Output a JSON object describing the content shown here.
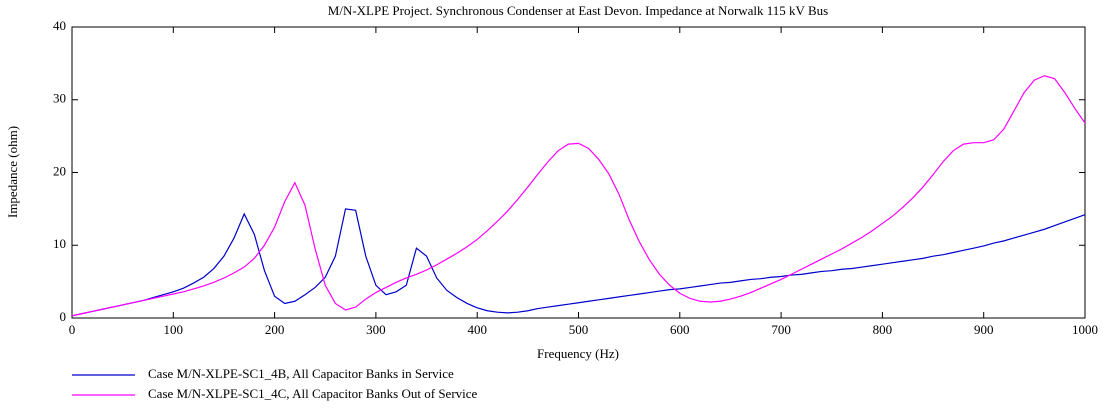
{
  "chart_data": {
    "type": "line",
    "title": "M/N-XLPE Project. Synchronous Condenser at East Devon. Impedance at Norwalk 115 kV Bus",
    "x_label": "Frequency (Hz)",
    "y_label": "Impedance (ohm)",
    "x": [
      0,
      10,
      20,
      30,
      40,
      50,
      60,
      70,
      80,
      90,
      100,
      110,
      120,
      130,
      140,
      150,
      160,
      170,
      180,
      190,
      200,
      210,
      220,
      230,
      240,
      250,
      260,
      270,
      280,
      290,
      300,
      310,
      320,
      330,
      340,
      350,
      360,
      370,
      380,
      390,
      400,
      410,
      420,
      430,
      440,
      450,
      460,
      470,
      480,
      490,
      500,
      510,
      520,
      530,
      540,
      550,
      560,
      570,
      580,
      590,
      600,
      610,
      620,
      630,
      640,
      650,
      660,
      670,
      680,
      690,
      700,
      710,
      720,
      730,
      740,
      750,
      760,
      770,
      780,
      790,
      800,
      810,
      820,
      830,
      840,
      850,
      860,
      870,
      880,
      890,
      900,
      910,
      920,
      930,
      940,
      950,
      960,
      970,
      980,
      990,
      1000
    ],
    "series": [
      {
        "name": "Case M/N-XLPE-SC1_4B, All Capacitor Banks in Service",
        "color": "#0000cc",
        "values": [
          0.3,
          0.6,
          0.9,
          1.2,
          1.5,
          1.8,
          2.1,
          2.4,
          2.8,
          3.2,
          3.6,
          4.1,
          4.8,
          5.6,
          6.8,
          8.5,
          11,
          14.3,
          11.5,
          6.5,
          3.0,
          2.0,
          2.3,
          3.2,
          4.2,
          5.6,
          8.5,
          15.0,
          14.8,
          8.5,
          4.5,
          3.2,
          3.6,
          4.5,
          9.6,
          8.5,
          5.5,
          3.8,
          2.8,
          2.0,
          1.4,
          1.0,
          0.8,
          0.7,
          0.8,
          1.0,
          1.3,
          1.5,
          1.7,
          1.9,
          2.1,
          2.3,
          2.5,
          2.7,
          2.9,
          3.1,
          3.3,
          3.5,
          3.7,
          3.9,
          4.0,
          4.2,
          4.4,
          4.6,
          4.8,
          4.9,
          5.1,
          5.3,
          5.4,
          5.6,
          5.7,
          5.9,
          6.0,
          6.2,
          6.4,
          6.5,
          6.7,
          6.8,
          7.0,
          7.2,
          7.4,
          7.6,
          7.8,
          8.0,
          8.2,
          8.5,
          8.7,
          9.0,
          9.3,
          9.6,
          9.9,
          10.3,
          10.6,
          11.0,
          11.4,
          11.8,
          12.2,
          12.7,
          13.2,
          13.7,
          14.2
        ]
      },
      {
        "name": "Case M/N-XLPE-SC1_4C, All Capacitor Banks Out of Service",
        "color": "#ff00ff",
        "values": [
          0.3,
          0.6,
          0.9,
          1.2,
          1.5,
          1.8,
          2.1,
          2.4,
          2.7,
          3.0,
          3.3,
          3.6,
          4.0,
          4.4,
          4.9,
          5.5,
          6.2,
          7.0,
          8.2,
          10.0,
          12.5,
          16.0,
          18.6,
          15.5,
          9.5,
          4.5,
          2.0,
          1.1,
          1.5,
          2.6,
          3.5,
          4.2,
          4.9,
          5.5,
          6.0,
          6.6,
          7.3,
          8.1,
          8.9,
          9.8,
          10.8,
          12.0,
          13.3,
          14.7,
          16.3,
          18.0,
          19.8,
          21.5,
          23.0,
          23.9,
          24.0,
          23.3,
          21.8,
          19.8,
          17.0,
          13.5,
          10.5,
          8.0,
          6.0,
          4.5,
          3.4,
          2.7,
          2.3,
          2.2,
          2.3,
          2.6,
          3.0,
          3.5,
          4.1,
          4.7,
          5.3,
          6.0,
          6.7,
          7.4,
          8.1,
          8.8,
          9.5,
          10.3,
          11.1,
          12.0,
          13.0,
          14.0,
          15.2,
          16.5,
          18.0,
          19.7,
          21.5,
          23.0,
          23.9,
          24.1,
          24.1,
          24.5,
          26.0,
          28.5,
          31.0,
          32.7,
          33.3,
          32.9,
          31.0,
          28.8,
          26.8
        ]
      }
    ],
    "xlim": [
      0,
      1000
    ],
    "xticks": [
      0,
      100,
      200,
      300,
      400,
      500,
      600,
      700,
      800,
      900,
      1000
    ],
    "ylim": [
      0,
      40
    ],
    "yticks": [
      0,
      10,
      20,
      30,
      40
    ]
  }
}
